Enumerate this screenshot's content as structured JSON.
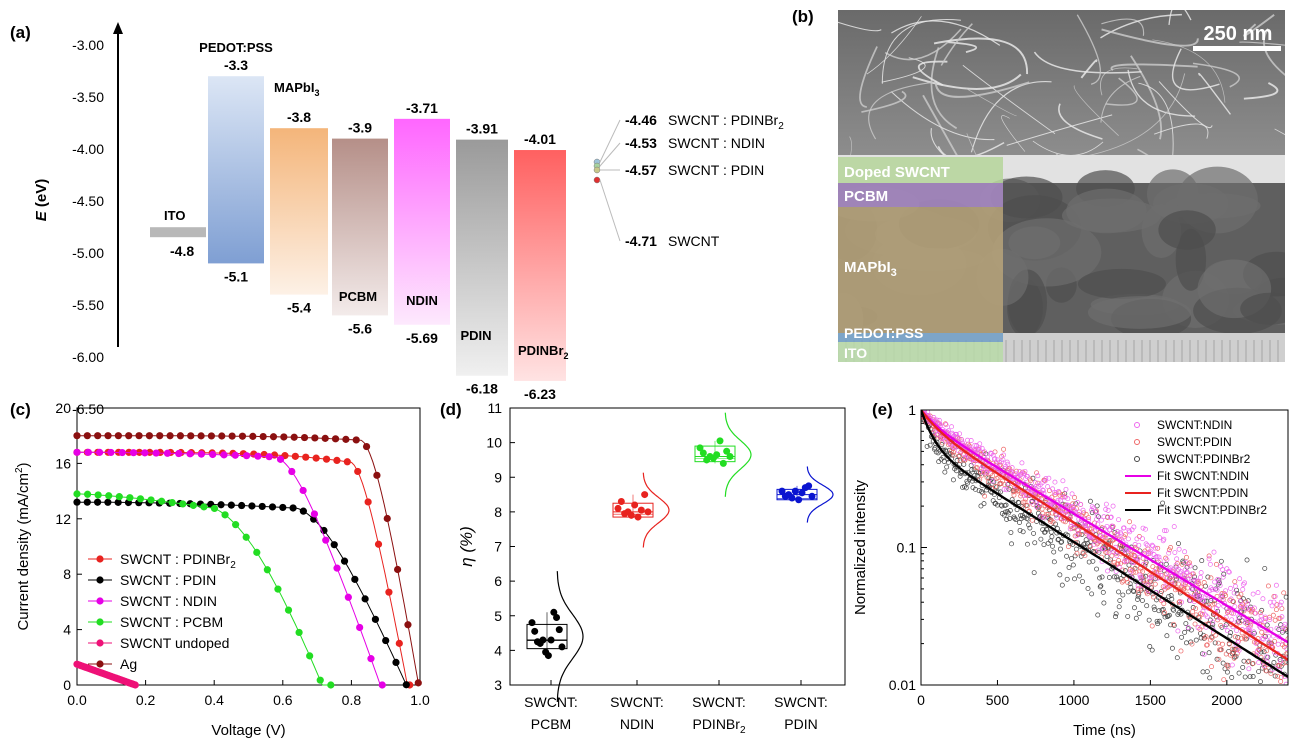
{
  "panels": {
    "a": "(a)",
    "b": "(b)",
    "c": "(c)",
    "d": "(d)",
    "e": "(e)"
  },
  "chart_data": [
    {
      "panel": "a",
      "type": "bar",
      "ylabel": "E (eV)",
      "ylim": [
        -3.0,
        -6.8
      ],
      "yticks": [
        "-3.00",
        "-3.50",
        "-4.00",
        "-4.50",
        "-5.00",
        "-5.50",
        "-6.00",
        "-6.50"
      ],
      "layers": [
        {
          "name": "ITO",
          "top": -4.8,
          "bottom": -4.8,
          "top_label": "",
          "bottom_label": "-4.8",
          "color_top": "#b8b8b8",
          "color_bottom": "#b8b8b8"
        },
        {
          "name": "PEDOT:PSS",
          "top": -3.3,
          "bottom": -5.1,
          "top_label": "-3.3",
          "bottom_label": "-5.1",
          "color_top": "#dce6f5",
          "color_bottom": "#7f9fd3"
        },
        {
          "name": "MAPbI",
          "name_sub": "3",
          "top": -3.8,
          "bottom": -5.4,
          "top_label": "-3.8",
          "bottom_label": "-5.4",
          "color_top": "#f4b57a",
          "color_bottom": "#fdf1e6"
        },
        {
          "name": "PCBM",
          "top": -3.9,
          "bottom": -5.6,
          "top_label": "-3.9",
          "bottom_label": "-5.6",
          "color_top": "#b58f88",
          "color_bottom": "#f3ebea"
        },
        {
          "name": "NDIN",
          "top": -3.71,
          "bottom": -5.69,
          "top_label": "-3.71",
          "bottom_label": "-5.69",
          "color_top": "#ff66ff",
          "color_bottom": "#fde9fd"
        },
        {
          "name": "PDIN",
          "top": -3.91,
          "bottom": -6.18,
          "top_label": "-3.91",
          "bottom_label": "-6.18",
          "color_top": "#9a9a9a",
          "color_bottom": "#f0f0f0"
        },
        {
          "name": "PDINBr",
          "name_sub": "2",
          "top": -4.01,
          "bottom": -6.23,
          "top_label": "-4.01",
          "bottom_label": "-6.23",
          "color_top": "#ff6060",
          "color_bottom": "#ffe3e3"
        }
      ],
      "swcnt_levels": [
        {
          "value": -4.46,
          "label_value": "-4.46",
          "label": "SWCNT : PDINBr",
          "label_sub": "2",
          "color": "#9ec4d9"
        },
        {
          "value": -4.53,
          "label_value": "-4.53",
          "label": "SWCNT : NDIN",
          "color": "#a7d3a0"
        },
        {
          "value": -4.57,
          "label_value": "-4.57",
          "label": "SWCNT : PDIN",
          "color": "#c8c88a"
        },
        {
          "value": -4.71,
          "label_value": "-4.71",
          "label": "SWCNT",
          "color": "#e03030"
        }
      ]
    },
    {
      "panel": "b",
      "type": "image",
      "scale_bar": "250 nm",
      "layers": [
        {
          "label": "Doped SWCNT",
          "color": "#b5d59a"
        },
        {
          "label": "PCBM",
          "color": "#a98ac7"
        },
        {
          "label": "MAPbI",
          "label_sub": "3",
          "color": "#b8a57a"
        },
        {
          "label": "PEDOT:PSS",
          "color": "#6f9ec7"
        },
        {
          "label": "ITO",
          "color": "#b9dba8"
        }
      ]
    },
    {
      "panel": "c",
      "type": "line",
      "xlabel": "Voltage (V)",
      "ylabel": "Current density (mA/cm",
      "ylabel_sup": "2",
      "ylabel_end": ")",
      "xlim": [
        0,
        1.0
      ],
      "ylim": [
        0,
        20
      ],
      "xticks": [
        0.0,
        0.2,
        0.4,
        0.6,
        0.8,
        1.0
      ],
      "xtick_labels": [
        "0.0",
        "0.2",
        "0.4",
        "0.6",
        "0.8",
        "1.0"
      ],
      "yticks": [
        0,
        4,
        8,
        12,
        16,
        20
      ],
      "ytick_labels": [
        "0",
        "4",
        "8",
        "12",
        "16",
        "20"
      ],
      "legend_position": "lower-left",
      "series": [
        {
          "name": "SWCNT : PDINBr",
          "name_sub": "2",
          "color": "#e8231f",
          "jsc": 16.8,
          "voc": 0.975,
          "vk": 0.8,
          "w": 0.03,
          "a": 1.6,
          "p": 4,
          "dots": 32,
          "vmax": 0.97
        },
        {
          "name": "SWCNT : PDIN",
          "color": "#000000",
          "jsc": 13.2,
          "voc": 0.975,
          "vk": 0.64,
          "w": 0.08,
          "a": 1.0,
          "p": 2,
          "dots": 32,
          "vmax": 0.96
        },
        {
          "name": "SWCNT : NDIN",
          "color": "#e600e6",
          "jsc": 16.8,
          "voc": 0.895,
          "vk": 0.58,
          "w": 0.05,
          "a": 0.8,
          "p": 2,
          "dots": 27,
          "vmax": 0.89
        },
        {
          "name": "SWCNT : PCBM",
          "color": "#22dd22",
          "jsc": 13.8,
          "voc": 0.745,
          "vk": 0.4,
          "w": 0.12,
          "a": 2.5,
          "p": 1.4,
          "dots": 24,
          "vmax": 0.74
        },
        {
          "name": "SWCNT undoped",
          "color": "#ee1177",
          "jsc": 1.5,
          "voc": 0.17,
          "vk": 0.0,
          "w": 0.3,
          "a": 0,
          "p": 1,
          "dots": 34,
          "vmax": 0.17
        },
        {
          "name": "Ag",
          "color": "#8b1010",
          "jsc": 18.0,
          "voc": 1.0,
          "vk": 0.83,
          "w": 0.035,
          "a": 0.7,
          "p": 4,
          "dots": 33,
          "vmax": 0.995
        }
      ]
    },
    {
      "panel": "d",
      "type": "box",
      "ylabel": "η (%)",
      "ylim": [
        3,
        11
      ],
      "yticks": [
        3,
        4,
        5,
        6,
        7,
        8,
        9,
        10,
        11
      ],
      "categories": [
        {
          "line1": "SWCNT:",
          "line2": "PCBM",
          "line2_sub": ""
        },
        {
          "line1": "SWCNT:",
          "line2": "NDIN",
          "line2_sub": ""
        },
        {
          "line1": "SWCNT:",
          "line2": "PDINBr",
          "line2_sub": "2"
        },
        {
          "line1": "SWCNT:",
          "line2": "PDIN",
          "line2_sub": ""
        }
      ],
      "series": [
        {
          "color": "#000000",
          "q1": 4.05,
          "median": 4.3,
          "mean": 4.4,
          "q3": 4.75,
          "values": [
            4.8,
            4.55,
            4.25,
            4.2,
            4.3,
            3.95,
            3.85,
            4.3,
            5.1,
            4.95,
            4.6,
            4.1
          ]
        },
        {
          "color": "#e8231f",
          "q1": 7.85,
          "median": 8.0,
          "mean": 8.05,
          "q3": 8.25,
          "values": [
            8.1,
            8.3,
            7.95,
            8.0,
            7.9,
            8.2,
            7.85,
            8.05,
            8.5,
            8.0
          ]
        },
        {
          "color": "#22dd22",
          "q1": 9.45,
          "median": 9.6,
          "mean": 9.65,
          "q3": 9.9,
          "values": [
            9.85,
            9.7,
            9.5,
            9.6,
            9.55,
            9.65,
            10.05,
            9.4,
            9.75,
            9.6
          ]
        },
        {
          "color": "#0a14d0",
          "q1": 8.35,
          "median": 8.5,
          "mean": 8.5,
          "q3": 8.65,
          "values": [
            8.6,
            8.45,
            8.5,
            8.4,
            8.6,
            8.35,
            8.55,
            8.7,
            8.75,
            8.45
          ]
        }
      ]
    },
    {
      "panel": "e",
      "type": "scatter",
      "xlabel": "Time (ns)",
      "ylabel": "Normalized intensity",
      "xlim": [
        0,
        2400
      ],
      "ylim": [
        0.01,
        1
      ],
      "yscale": "log",
      "xticks": [
        0,
        500,
        1000,
        1500,
        2000
      ],
      "yticks": [
        0.01,
        0.1,
        1
      ],
      "ytick_labels": [
        "0.01",
        "0.1",
        "1"
      ],
      "legend_position": "top-right",
      "series": [
        {
          "name": "SWCNT:NDIN",
          "color": "#ee66ee",
          "tau1": 100,
          "a1": 0.18,
          "tau2": 650,
          "a2": 0.82,
          "noise": 0.18
        },
        {
          "name": "SWCNT:PDIN",
          "color": "#ee6666",
          "tau1": 100,
          "a1": 0.22,
          "tau2": 610,
          "a2": 0.78,
          "noise": 0.2
        },
        {
          "name": "SWCNT:PDINBr2",
          "color": "#444444",
          "tau1": 70,
          "a1": 0.45,
          "tau2": 620,
          "a2": 0.55,
          "noise": 0.3
        }
      ],
      "fits": [
        {
          "name": "Fit SWCNT:NDIN",
          "color": "#e600e6"
        },
        {
          "name": "Fit SWCNT:PDIN",
          "color": "#e8231f"
        },
        {
          "name": "Fit SWCNT:PDINBr2",
          "color": "#000000"
        }
      ]
    }
  ]
}
